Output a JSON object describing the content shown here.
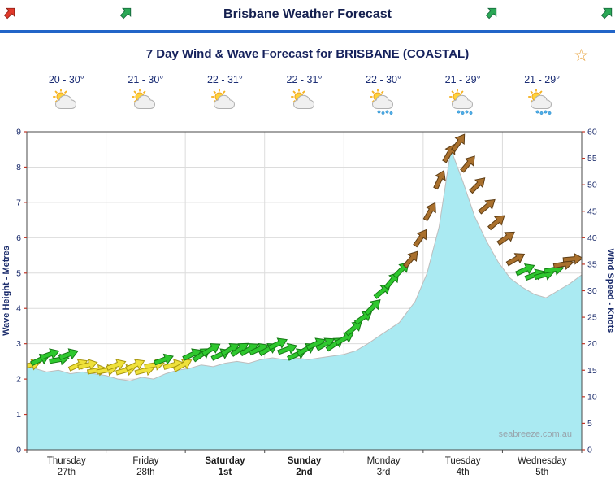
{
  "header": {
    "title": "Brisbane Weather Forecast"
  },
  "icons": {
    "star_char": "☆"
  },
  "colors": {
    "header_rule": "#2265c8",
    "red_arrow": "#e0392b",
    "green_arrow": "#2ba856",
    "star": "#e8a33d"
  },
  "days": [
    {
      "name": "Thursday",
      "date": "27th",
      "temp": "20 - 30°",
      "icon": "sun-cloud",
      "weekend": false
    },
    {
      "name": "Friday",
      "date": "28th",
      "temp": "21 - 30°",
      "icon": "sun-cloud",
      "weekend": false
    },
    {
      "name": "Saturday",
      "date": "1st",
      "temp": "22 - 31°",
      "icon": "sun-cloud",
      "weekend": true
    },
    {
      "name": "Sunday",
      "date": "2nd",
      "temp": "22 - 31°",
      "icon": "sun-cloud",
      "weekend": true
    },
    {
      "name": "Monday",
      "date": "3rd",
      "temp": "22 - 30°",
      "icon": "sun-cloud-showers",
      "weekend": false
    },
    {
      "name": "Tuesday",
      "date": "4th",
      "temp": "21 - 29°",
      "icon": "sun-cloud-showers",
      "weekend": false
    },
    {
      "name": "Wednesday",
      "date": "5th",
      "temp": "21 - 29°",
      "icon": "sun-cloud-showers",
      "weekend": false
    }
  ],
  "chart_data": {
    "type": "area+wind-arrows",
    "title": "7 Day Wind & Wave Forecast for BRISBANE (COASTAL)",
    "watermark": "seabreeze.com.au",
    "x_range_days": [
      0,
      7
    ],
    "y_left": {
      "label": "Wave Height - Metres",
      "min": 0,
      "max": 9,
      "ticks": [
        0,
        1,
        2,
        3,
        4,
        5,
        6,
        7,
        8,
        9
      ]
    },
    "y_right": {
      "label": "Wind Speed - Knots",
      "min": 0,
      "max": 60,
      "ticks": [
        0,
        5,
        10,
        15,
        20,
        25,
        30,
        35,
        40,
        45,
        50,
        55,
        60
      ]
    },
    "wave_series": {
      "name": "Wave Height (m)",
      "x": [
        0,
        0.1,
        0.25,
        0.4,
        0.55,
        0.7,
        0.85,
        1.0,
        1.15,
        1.3,
        1.45,
        1.6,
        1.75,
        1.9,
        2.05,
        2.2,
        2.35,
        2.5,
        2.65,
        2.8,
        2.95,
        3.1,
        3.25,
        3.4,
        3.55,
        3.7,
        3.85,
        4.0,
        4.15,
        4.3,
        4.5,
        4.7,
        4.9,
        5.05,
        5.2,
        5.35,
        5.5,
        5.65,
        5.8,
        5.95,
        6.1,
        6.25,
        6.4,
        6.55,
        6.7,
        6.85,
        7.0
      ],
      "y": [
        2.45,
        2.3,
        2.2,
        2.25,
        2.15,
        2.2,
        2.15,
        2.1,
        2.0,
        1.95,
        2.05,
        2.0,
        2.15,
        2.25,
        2.3,
        2.4,
        2.35,
        2.45,
        2.5,
        2.45,
        2.55,
        2.6,
        2.55,
        2.6,
        2.55,
        2.6,
        2.65,
        2.7,
        2.8,
        3.0,
        3.3,
        3.6,
        4.2,
        5.0,
        6.3,
        8.5,
        7.6,
        6.6,
        5.9,
        5.3,
        4.85,
        4.6,
        4.4,
        4.3,
        4.5,
        4.7,
        4.95
      ]
    },
    "wind_series": {
      "name": "Wind Speed (knots)",
      "x": [
        0.05,
        0.17,
        0.29,
        0.41,
        0.53,
        0.65,
        0.77,
        0.89,
        1.01,
        1.13,
        1.25,
        1.37,
        1.49,
        1.61,
        1.73,
        1.85,
        1.97,
        2.09,
        2.21,
        2.33,
        2.45,
        2.57,
        2.69,
        2.81,
        2.93,
        3.05,
        3.17,
        3.29,
        3.41,
        3.53,
        3.65,
        3.77,
        3.89,
        4.01,
        4.13,
        4.25,
        4.37,
        4.49,
        4.61,
        4.73,
        4.85,
        4.97,
        5.09,
        5.21,
        5.33,
        5.45,
        5.57,
        5.69,
        5.81,
        5.93,
        6.05,
        6.17,
        6.29,
        6.41,
        6.53,
        6.65,
        6.77,
        6.89
      ],
      "knots": [
        16,
        17,
        18,
        17,
        18,
        16,
        16,
        15,
        15,
        16,
        15,
        16,
        15,
        16,
        17,
        16,
        16,
        18,
        18,
        19,
        18,
        19,
        19,
        19,
        19,
        19,
        20,
        19,
        18,
        19,
        20,
        20,
        20,
        21,
        23,
        25,
        27,
        30,
        32,
        34,
        36,
        40,
        45,
        51,
        56,
        58,
        54,
        50,
        46,
        43,
        40,
        36,
        34,
        33,
        33,
        34,
        35,
        36
      ],
      "dir_deg": [
        15,
        25,
        20,
        10,
        20,
        25,
        15,
        10,
        10,
        20,
        15,
        25,
        15,
        10,
        20,
        15,
        30,
        25,
        35,
        30,
        25,
        30,
        35,
        30,
        25,
        30,
        25,
        20,
        25,
        30,
        25,
        30,
        35,
        30,
        40,
        35,
        45,
        40,
        50,
        45,
        50,
        55,
        60,
        65,
        60,
        55,
        50,
        45,
        40,
        40,
        35,
        30,
        25,
        20,
        15,
        10,
        10,
        5
      ]
    },
    "wind_color_rules": {
      "yellow_max_knots": 16,
      "green_max_knots": 34,
      "yellow": "#efe13a",
      "yellow_edge": "#a8970f",
      "green": "#2ec82e",
      "green_edge": "#157a15",
      "brown": "#a9702d",
      "brown_edge": "#5e3d14"
    },
    "styles": {
      "area_fill": "#aaeaf2",
      "area_edge": "#bdbdbd",
      "grid": "#dcdcdc",
      "border": "#4a4a4a",
      "tick": "#c03425",
      "axis_label": "#1a2b6b",
      "day_label": "#1a1a1a",
      "watermark": "#98a4ac"
    }
  }
}
